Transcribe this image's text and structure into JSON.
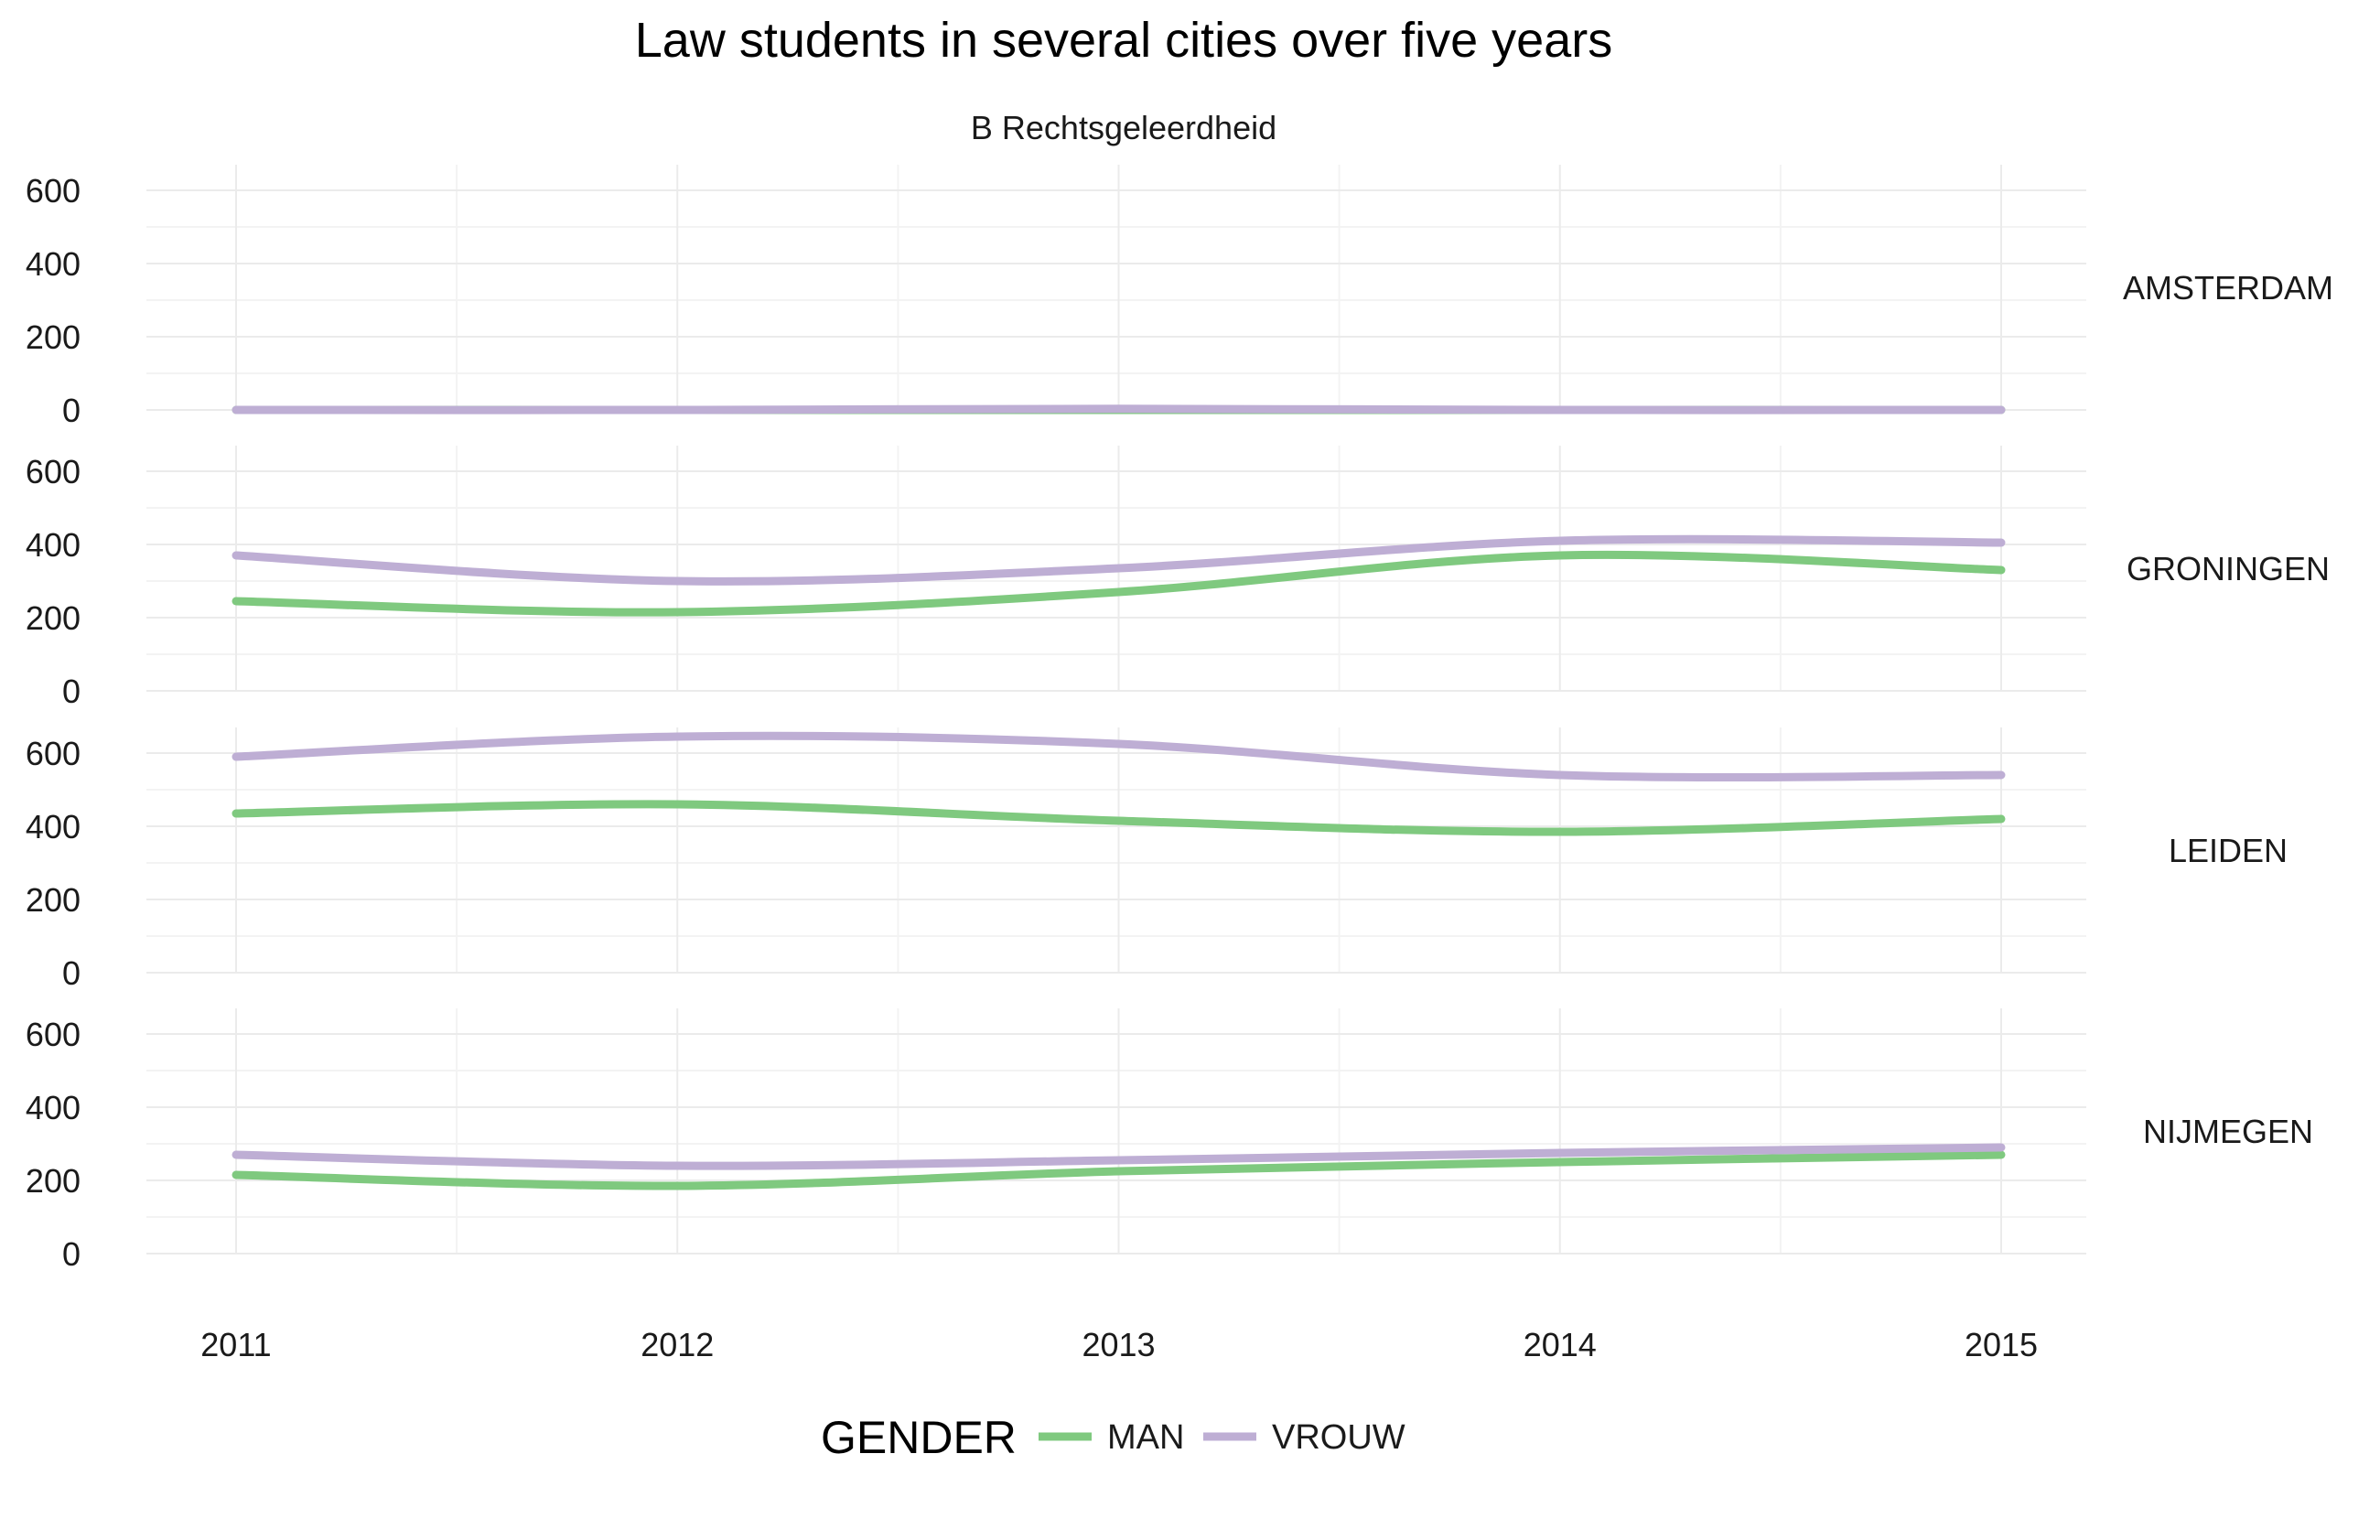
{
  "chart_data": {
    "type": "line",
    "title": "Law students in several cities over five years",
    "subtitle": "B Rechtsgeleerdheid",
    "xlabel": "",
    "ylabel": "",
    "x": [
      2011,
      2012,
      2013,
      2014,
      2015
    ],
    "x_tick_labels": [
      "2011",
      "2012",
      "2013",
      "2014",
      "2015"
    ],
    "ylim": [
      0,
      670
    ],
    "y_ticks": [
      0,
      200,
      400,
      600
    ],
    "y_tick_labels": [
      "0",
      "200",
      "400",
      "600"
    ],
    "grid": true,
    "legend": {
      "title": "GENDER",
      "placement": "bottom",
      "items": [
        {
          "label": "MAN",
          "color": "#7fc97f"
        },
        {
          "label": "VROUW",
          "color": "#beaed4"
        }
      ]
    },
    "facets": [
      {
        "label": "AMSTERDAM",
        "series": [
          {
            "name": "MAN",
            "color": "#7fc97f",
            "values": [
              0,
              0,
              0,
              0,
              0
            ]
          },
          {
            "name": "VROUW",
            "color": "#beaed4",
            "values": [
              0,
              0,
              3,
              0,
              0
            ]
          }
        ]
      },
      {
        "label": "GRONINGEN",
        "series": [
          {
            "name": "MAN",
            "color": "#7fc97f",
            "values": [
              245,
              215,
              270,
              370,
              330
            ]
          },
          {
            "name": "VROUW",
            "color": "#beaed4",
            "values": [
              370,
              300,
              335,
              410,
              405
            ]
          }
        ]
      },
      {
        "label": "LEIDEN",
        "series": [
          {
            "name": "MAN",
            "color": "#7fc97f",
            "values": [
              435,
              460,
              415,
              385,
              420
            ]
          },
          {
            "name": "VROUW",
            "color": "#beaed4",
            "values": [
              590,
              645,
              625,
              540,
              540
            ]
          }
        ]
      },
      {
        "label": "NIJMEGEN",
        "series": [
          {
            "name": "MAN",
            "color": "#7fc97f",
            "values": [
              215,
              185,
              225,
              250,
              270
            ]
          },
          {
            "name": "VROUW",
            "color": "#beaed4",
            "values": [
              270,
              240,
              255,
              275,
              290
            ]
          }
        ]
      }
    ]
  }
}
